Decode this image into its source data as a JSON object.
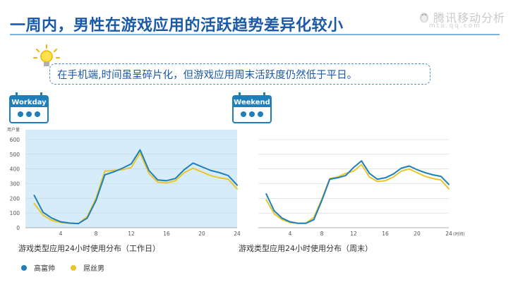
{
  "header": {
    "title": "一周内，男性在游戏应用的活跃趋势差异化较小",
    "brand": "腾讯移动分析",
    "brand_sub": "mta.qq.com"
  },
  "callout": {
    "text": "在手机端,时间虽呈碎片化，但游戏应用周末活跃度仍然低于平日。"
  },
  "badges": {
    "workday": "Workday",
    "weekend": "Weekend"
  },
  "captions": {
    "left": "游戏类型应用24小时使用分布（工作日）",
    "right": "游戏类型应用24小时使用分布（周末）"
  },
  "legend": [
    {
      "name": "高富帅",
      "color": "#1f7fba"
    },
    {
      "name": "屌丝男",
      "color": "#e8c62c"
    }
  ],
  "colors": {
    "series1": "#1f7fba",
    "series2": "#e8c62c",
    "highlight_bg": "#d6ecf8",
    "title": "#1a5aa6"
  },
  "chart_data": [
    {
      "type": "line",
      "title": "游戏类型应用24小时使用分布（工作日）",
      "ylabel": "用户量",
      "xlabel": "",
      "ylim": [
        0,
        600
      ],
      "yticks": [
        0,
        100,
        200,
        300,
        400,
        500,
        600
      ],
      "xlim": [
        0,
        24
      ],
      "xticks": [
        0,
        4,
        8,
        12,
        16,
        20,
        24
      ],
      "x_tick_labels": [
        "0",
        "4",
        "8",
        "12",
        "16",
        "20",
        "24"
      ],
      "grid": true,
      "shaded": true,
      "x": [
        1,
        2,
        3,
        4,
        5,
        6,
        7,
        8,
        9,
        10,
        11,
        12,
        13,
        14,
        15,
        16,
        17,
        18,
        19,
        20,
        21,
        22,
        23,
        24
      ],
      "series": [
        {
          "name": "高富帅",
          "values": [
            220,
            105,
            65,
            40,
            32,
            28,
            65,
            185,
            360,
            380,
            405,
            435,
            530,
            390,
            325,
            320,
            335,
            395,
            440,
            415,
            390,
            375,
            355,
            290
          ]
        },
        {
          "name": "屌丝男",
          "values": [
            165,
            85,
            50,
            35,
            30,
            28,
            75,
            200,
            385,
            390,
            395,
            410,
            510,
            370,
            310,
            305,
            320,
            375,
            405,
            380,
            355,
            340,
            330,
            265
          ]
        }
      ]
    },
    {
      "type": "line",
      "title": "游戏类型应用24小时使用分布（周末）",
      "ylabel": "",
      "xlabel": "(时间)",
      "ylim": [
        0,
        600
      ],
      "xlim": [
        0,
        24
      ],
      "xticks": [
        0,
        4,
        8,
        12,
        16,
        20,
        24
      ],
      "x_tick_labels": [
        "0",
        "4",
        "8",
        "12",
        "16",
        "20",
        "24"
      ],
      "grid": true,
      "shaded": false,
      "x": [
        1,
        2,
        3,
        4,
        5,
        6,
        7,
        8,
        9,
        10,
        11,
        12,
        13,
        14,
        15,
        16,
        17,
        18,
        19,
        20,
        21,
        22,
        23,
        24
      ],
      "series": [
        {
          "name": "高富帅",
          "values": [
            230,
            115,
            65,
            40,
            30,
            30,
            55,
            185,
            330,
            340,
            355,
            410,
            455,
            370,
            330,
            340,
            365,
            405,
            420,
            395,
            375,
            360,
            350,
            295
          ]
        },
        {
          "name": "屌丝男",
          "values": [
            190,
            95,
            55,
            35,
            30,
            32,
            70,
            195,
            335,
            345,
            370,
            385,
            430,
            345,
            315,
            320,
            345,
            385,
            400,
            375,
            350,
            335,
            325,
            265
          ]
        }
      ]
    }
  ]
}
